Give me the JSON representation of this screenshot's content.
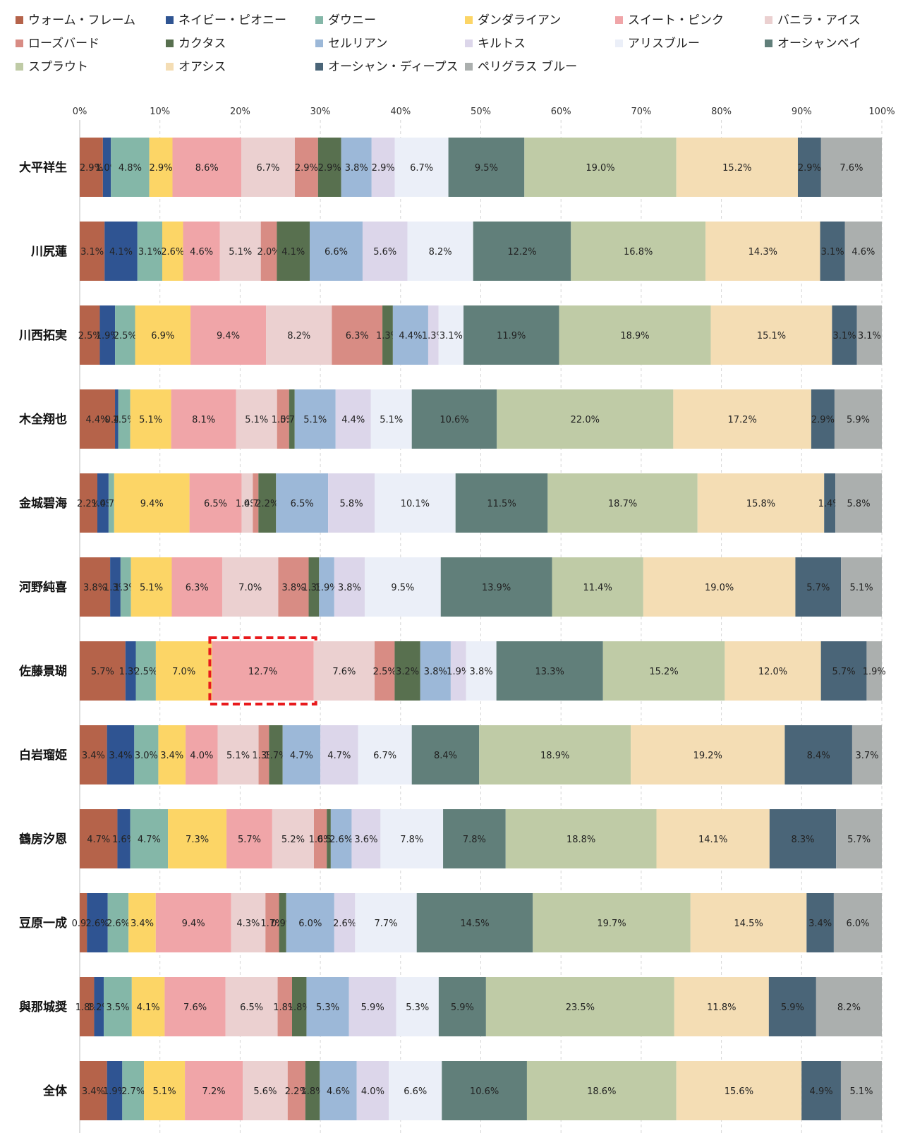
{
  "chart_data": {
    "type": "bar",
    "orientation": "horizontal",
    "stacked": "percent",
    "xlim": [
      0,
      100
    ],
    "xticks": [
      "0%",
      "10%",
      "20%",
      "30%",
      "40%",
      "50%",
      "60%",
      "70%",
      "80%",
      "90%",
      "100%"
    ],
    "grid": true,
    "legend_position": "top",
    "categories": [
      "大平祥生",
      "川尻蓮",
      "川西拓実",
      "木全翔也",
      "金城碧海",
      "河野純喜",
      "佐藤景瑚",
      "白岩瑠姫",
      "鶴房汐恩",
      "豆原一成",
      "與那城奨",
      "全体"
    ],
    "highlight": {
      "category": "佐藤景瑚",
      "series": "スイート・ピンク"
    },
    "series": [
      {
        "name": "ウォーム・フレーム",
        "color": "#b5634a",
        "values": [
          2.9,
          3.1,
          2.5,
          4.4,
          2.2,
          3.8,
          5.7,
          3.4,
          4.7,
          0.9,
          1.8,
          3.4
        ],
        "labels": [
          "2.9%",
          "3.1%",
          "2.5%",
          "4.4%",
          "2.2%",
          "3.8%",
          "5.7%",
          "3.4%",
          "4.7%",
          "0.9%",
          "1.8%",
          "3.4%"
        ]
      },
      {
        "name": "ネイビー・ピオニー",
        "color": "#2f5492",
        "values": [
          1.0,
          4.1,
          1.9,
          0.4,
          1.4,
          1.3,
          1.3,
          3.4,
          1.6,
          2.6,
          1.2,
          1.9
        ],
        "labels": [
          "1.0%",
          "4.1%",
          "1.9%",
          "0.4%",
          "1.4%",
          "1.3%",
          "1.3%",
          "3.4%",
          "1.6%",
          "2.6%",
          "1.2%",
          "1.9%"
        ]
      },
      {
        "name": "ダウニー",
        "color": "#84b7a8",
        "values": [
          4.8,
          3.1,
          2.5,
          1.5,
          0.7,
          1.3,
          2.5,
          3.0,
          4.7,
          2.6,
          3.5,
          2.7
        ],
        "labels": [
          "4.8%",
          "3.1%",
          "2.5%",
          "1.5%",
          "0.7%",
          "1.3%",
          "2.5%",
          "3.0%",
          "4.7%",
          "2.6%",
          "3.5%",
          "2.7%"
        ]
      },
      {
        "name": "ダンダライアン",
        "color": "#fcd566",
        "values": [
          2.9,
          2.6,
          6.9,
          5.1,
          9.4,
          5.1,
          7.0,
          3.4,
          7.3,
          3.4,
          4.1,
          5.1
        ],
        "labels": [
          "2.9%",
          "2.6%",
          "6.9%",
          "5.1%",
          "9.4%",
          "5.1%",
          "7.0%",
          "3.4%",
          "7.3%",
          "3.4%",
          "4.1%",
          "5.1%"
        ]
      },
      {
        "name": "スイート・ピンク",
        "color": "#f0a5a8",
        "values": [
          8.6,
          4.6,
          9.4,
          8.1,
          6.5,
          6.3,
          12.7,
          4.0,
          5.7,
          9.4,
          7.6,
          7.2
        ],
        "labels": [
          "8.6%",
          "4.6%",
          "9.4%",
          "8.1%",
          "6.5%",
          "6.3%",
          "12.7%",
          "4.0%",
          "5.7%",
          "9.4%",
          "7.6%",
          "7.2%"
        ]
      },
      {
        "name": "バニラ・アイス",
        "color": "#ebd0d0",
        "values": [
          6.7,
          5.1,
          8.2,
          5.1,
          1.4,
          7.0,
          7.6,
          5.1,
          5.2,
          4.3,
          6.5,
          5.6
        ],
        "labels": [
          "6.7%",
          "5.1%",
          "8.2%",
          "5.1%",
          "1.4%",
          "7.0%",
          "7.6%",
          "5.1%",
          "5.2%",
          "4.3%",
          "6.5%",
          "5.6%"
        ]
      },
      {
        "name": "ローズバード",
        "color": "#d88c84",
        "values": [
          2.9,
          2.0,
          6.3,
          1.5,
          0.7,
          3.8,
          2.5,
          1.3,
          1.6,
          1.7,
          1.8,
          2.2
        ],
        "labels": [
          "2.9%",
          "2.0%",
          "6.3%",
          "1.5%",
          "0.7%",
          "3.8%",
          "2.5%",
          "1.3%",
          "1.6%",
          "1.7%",
          "1.8%",
          "2.2%"
        ]
      },
      {
        "name": "カクタス",
        "color": "#58704f",
        "values": [
          2.9,
          4.1,
          1.3,
          0.7,
          2.2,
          1.3,
          3.2,
          1.7,
          0.5,
          0.9,
          1.8,
          1.8
        ],
        "labels": [
          "2.9%",
          "4.1%",
          "1.3%",
          "0.7%",
          "2.2%",
          "1.3%",
          "3.2%",
          "1.7%",
          "0.5%",
          "0.9%",
          "1.8%",
          "1.8%"
        ]
      },
      {
        "name": "セルリアン",
        "color": "#9cb8d8",
        "values": [
          3.8,
          6.6,
          4.4,
          5.1,
          6.5,
          1.9,
          3.8,
          4.7,
          2.6,
          6.0,
          5.3,
          4.6
        ],
        "labels": [
          "3.8%",
          "6.6%",
          "4.4%",
          "5.1%",
          "6.5%",
          "1.9%",
          "3.8%",
          "4.7%",
          "2.6%",
          "6.0%",
          "5.3%",
          "4.6%"
        ]
      },
      {
        "name": "キルトス",
        "color": "#dcd6ea",
        "values": [
          2.9,
          5.6,
          1.3,
          4.4,
          5.8,
          3.8,
          1.9,
          4.7,
          3.6,
          2.6,
          5.9,
          4.0
        ],
        "labels": [
          "2.9%",
          "5.6%",
          "1.3%",
          "4.4%",
          "5.8%",
          "3.8%",
          "1.9%",
          "4.7%",
          "3.6%",
          "2.6%",
          "5.9%",
          "4.0%"
        ]
      },
      {
        "name": "アリスブルー",
        "color": "#ebeff8",
        "values": [
          6.7,
          8.2,
          3.1,
          5.1,
          10.1,
          9.5,
          3.8,
          6.7,
          7.8,
          7.7,
          5.3,
          6.6
        ],
        "labels": [
          "6.7%",
          "8.2%",
          "3.1%",
          "5.1%",
          "10.1%",
          "9.5%",
          "3.8%",
          "6.7%",
          "7.8%",
          "7.7%",
          "5.3%",
          "6.6%"
        ]
      },
      {
        "name": "オーシャンベイ",
        "color": "#617f7a",
        "values": [
          9.5,
          12.2,
          11.9,
          10.6,
          11.5,
          13.9,
          13.3,
          8.4,
          7.8,
          14.5,
          5.9,
          10.6
        ],
        "labels": [
          "9.5%",
          "12.2%",
          "11.9%",
          "10.6%",
          "11.5%",
          "13.9%",
          "13.3%",
          "8.4%",
          "7.8%",
          "14.5%",
          "5.9%",
          "10.6%"
        ]
      },
      {
        "name": "スプラウト",
        "color": "#bfcba6",
        "values": [
          19.0,
          16.8,
          18.9,
          22.0,
          18.7,
          11.4,
          15.2,
          18.9,
          18.8,
          19.7,
          23.5,
          18.6
        ],
        "labels": [
          "19.0%",
          "16.8%",
          "18.9%",
          "22.0%",
          "18.7%",
          "11.4%",
          "15.2%",
          "18.9%",
          "18.8%",
          "19.7%",
          "23.5%",
          "18.6%"
        ]
      },
      {
        "name": "オアシス",
        "color": "#f4ddb4",
        "values": [
          15.2,
          14.3,
          15.1,
          17.2,
          15.8,
          19.0,
          12.0,
          19.2,
          14.1,
          14.5,
          11.8,
          15.6
        ],
        "labels": [
          "15.2%",
          "14.3%",
          "15.1%",
          "17.2%",
          "15.8%",
          "19.0%",
          "12.0%",
          "19.2%",
          "14.1%",
          "14.5%",
          "11.8%",
          "15.6%"
        ]
      },
      {
        "name": "オーシャン・ディープス",
        "color": "#4a6578",
        "values": [
          2.9,
          3.1,
          3.1,
          2.9,
          1.4,
          5.7,
          5.7,
          8.4,
          8.3,
          3.4,
          5.9,
          4.9
        ],
        "labels": [
          "2.9%",
          "3.1%",
          "3.1%",
          "2.9%",
          "1.4%",
          "5.7%",
          "5.7%",
          "8.4%",
          "8.3%",
          "3.4%",
          "5.9%",
          "4.9%"
        ]
      },
      {
        "name": "ペリグラス ブルー",
        "color": "#abafae",
        "values": [
          7.6,
          4.6,
          3.1,
          5.9,
          5.8,
          5.1,
          1.9,
          3.7,
          5.7,
          6.0,
          8.2,
          5.1
        ],
        "labels": [
          "7.6%",
          "4.6%",
          "3.1%",
          "5.9%",
          "5.8%",
          "5.1%",
          "1.9%",
          "3.7%",
          "5.7%",
          "6.0%",
          "8.2%",
          "5.1%"
        ]
      }
    ]
  }
}
